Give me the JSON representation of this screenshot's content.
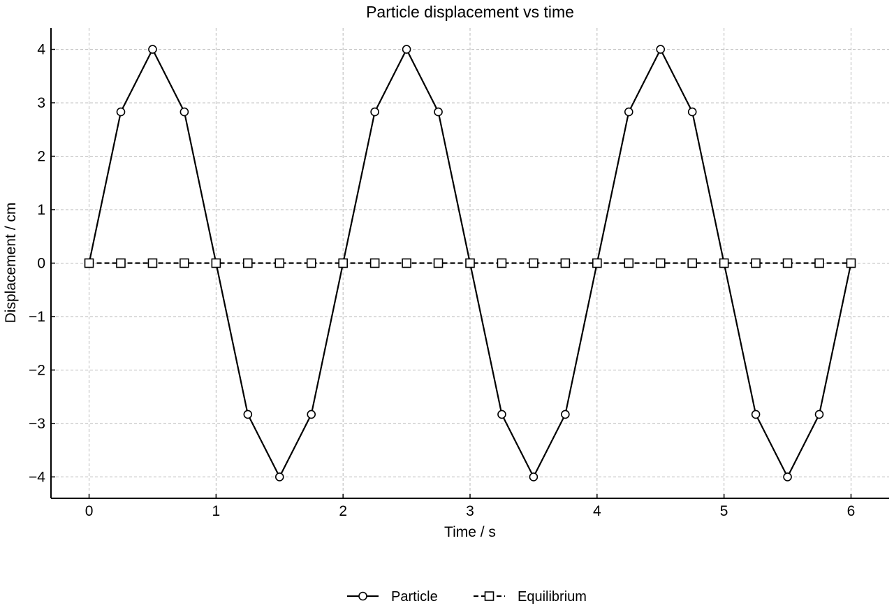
{
  "chart_data": {
    "type": "line",
    "title": "Particle displacement vs time",
    "xlabel": "Time / s",
    "ylabel": "Displacement / cm",
    "xlim": [
      -0.3,
      6.3
    ],
    "ylim": [
      -4.4,
      4.4
    ],
    "xticks": [
      0,
      1,
      2,
      3,
      4,
      5,
      6
    ],
    "xtick_labels": [
      "0",
      "1",
      "2",
      "3",
      "4",
      "5",
      "6"
    ],
    "yticks": [
      4,
      3,
      2,
      1,
      0,
      -1,
      -2,
      -3,
      -4
    ],
    "ytick_labels": [
      "4",
      "3",
      "2",
      "1",
      "0",
      "−1",
      "−2",
      "−3",
      "−4"
    ],
    "grid": true,
    "legend_position": "bottom-center",
    "x": [
      0,
      0.25,
      0.5,
      0.75,
      1,
      1.25,
      1.5,
      1.75,
      2,
      2.25,
      2.5,
      2.75,
      3,
      3.25,
      3.5,
      3.75,
      4,
      4.25,
      4.5,
      4.75,
      5,
      5.25,
      5.5,
      5.75,
      6
    ],
    "series": [
      {
        "name": "Particle",
        "marker": "circle",
        "line_style": "solid",
        "color": "#000000",
        "values": [
          0,
          2.83,
          4,
          2.83,
          0,
          -2.83,
          -4,
          -2.83,
          0,
          2.83,
          4,
          2.83,
          0,
          -2.83,
          -4,
          -2.83,
          0,
          2.83,
          4,
          2.83,
          0,
          -2.83,
          -4,
          -2.83,
          0
        ]
      },
      {
        "name": "Equilibrium",
        "marker": "square",
        "line_style": "dashed",
        "color": "#000000",
        "values": [
          0,
          0,
          0,
          0,
          0,
          0,
          0,
          0,
          0,
          0,
          0,
          0,
          0,
          0,
          0,
          0,
          0,
          0,
          0,
          0,
          0,
          0,
          0,
          0,
          0
        ]
      }
    ]
  }
}
